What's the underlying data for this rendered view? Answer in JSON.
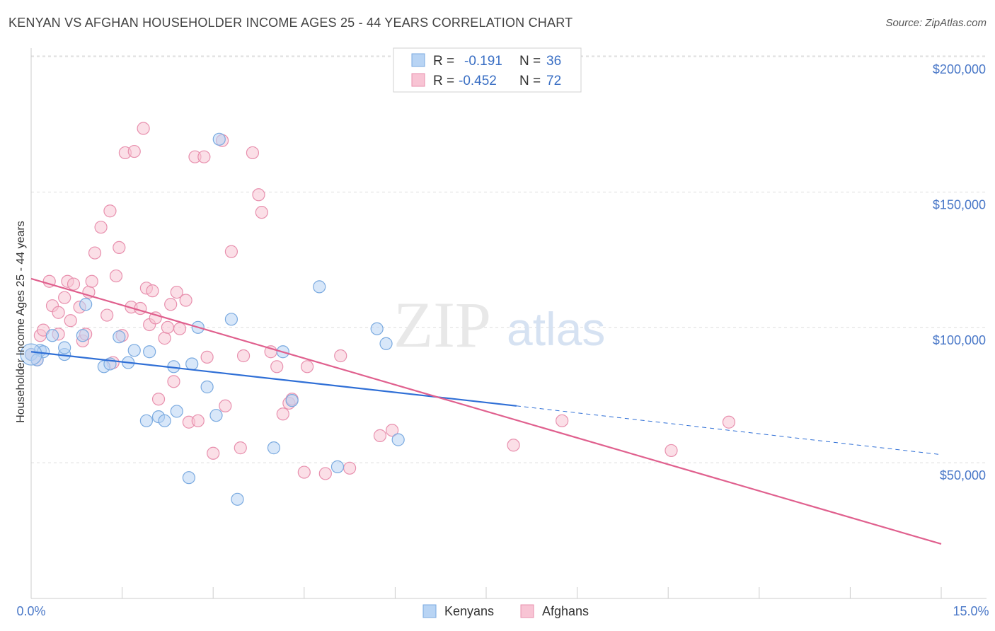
{
  "title": "KENYAN VS AFGHAN HOUSEHOLDER INCOME AGES 25 - 44 YEARS CORRELATION CHART",
  "source": "Source: ZipAtlas.com",
  "watermark": {
    "zip": "ZIP",
    "atlas": "atlas"
  },
  "colors": {
    "kenyan_fill": "#b8d4f4",
    "kenyan_stroke": "#7aaae0",
    "kenyan_line": "#2f6fd6",
    "afghan_fill": "#f8c4d4",
    "afghan_stroke": "#e890ae",
    "afghan_line": "#e0608e",
    "tick_text": "#4a78c8"
  },
  "legend": {
    "row1": {
      "r_label": "R =",
      "r_value": "-0.191",
      "n_label": "N =",
      "n_value": "36"
    },
    "row2": {
      "r_label": "R =",
      "r_value": "-0.452",
      "n_label": "N =",
      "n_value": "72"
    }
  },
  "chart_data": {
    "type": "scatter",
    "title": "KENYAN VS AFGHAN HOUSEHOLDER INCOME AGES 25 - 44 YEARS CORRELATION CHART",
    "xlabel": "",
    "ylabel": "Householder Income Ages 25 - 44 years",
    "xlim": [
      0,
      15
    ],
    "ylim": [
      0,
      205000
    ],
    "x_tick_labels": [
      "0.0%",
      "15.0%"
    ],
    "y_ticks": [
      50000,
      100000,
      150000,
      200000
    ],
    "y_tick_labels": [
      "$50,000",
      "$100,000",
      "$150,000",
      "$200,000"
    ],
    "grid": true,
    "legend_position": "top-center",
    "series": [
      {
        "name": "Kenyans",
        "color": "#b8d4f4",
        "trend": {
          "x": [
            0,
            8.0
          ],
          "y": [
            91000,
            71000
          ],
          "dashed_to": [
            15,
            53000
          ]
        },
        "points": [
          [
            0.0,
            90000
          ],
          [
            0.15,
            91500
          ],
          [
            0.2,
            91000
          ],
          [
            0.35,
            97000
          ],
          [
            0.55,
            90000
          ],
          [
            0.55,
            92500
          ],
          [
            0.85,
            97000
          ],
          [
            0.9,
            108500
          ],
          [
            1.2,
            85500
          ],
          [
            1.3,
            86500
          ],
          [
            1.45,
            96500
          ],
          [
            1.6,
            87000
          ],
          [
            1.7,
            91500
          ],
          [
            1.9,
            65500
          ],
          [
            1.95,
            91000
          ],
          [
            2.1,
            67000
          ],
          [
            2.2,
            65500
          ],
          [
            2.35,
            85500
          ],
          [
            2.4,
            69000
          ],
          [
            2.6,
            44500
          ],
          [
            2.65,
            86500
          ],
          [
            2.75,
            100000
          ],
          [
            2.9,
            78000
          ],
          [
            3.05,
            67500
          ],
          [
            3.1,
            169500
          ],
          [
            3.3,
            103000
          ],
          [
            3.4,
            36500
          ],
          [
            4.0,
            55500
          ],
          [
            4.15,
            91000
          ],
          [
            4.3,
            73000
          ],
          [
            4.75,
            115000
          ],
          [
            5.05,
            48500
          ],
          [
            5.7,
            99500
          ],
          [
            5.85,
            94000
          ],
          [
            6.05,
            58500
          ],
          [
            0.1,
            88000
          ]
        ]
      },
      {
        "name": "Afghans",
        "color": "#f8c4d4",
        "trend": {
          "x": [
            0,
            15
          ],
          "y": [
            118000,
            20000
          ]
        },
        "points": [
          [
            0.0,
            90000
          ],
          [
            0.1,
            88000
          ],
          [
            0.15,
            97000
          ],
          [
            0.2,
            99000
          ],
          [
            0.3,
            117000
          ],
          [
            0.35,
            108000
          ],
          [
            0.45,
            97500
          ],
          [
            0.45,
            105500
          ],
          [
            0.55,
            111000
          ],
          [
            0.6,
            117000
          ],
          [
            0.65,
            102500
          ],
          [
            0.7,
            116000
          ],
          [
            0.8,
            107500
          ],
          [
            0.85,
            95000
          ],
          [
            0.9,
            97500
          ],
          [
            0.95,
            113000
          ],
          [
            1.0,
            117000
          ],
          [
            1.05,
            127500
          ],
          [
            1.15,
            137000
          ],
          [
            1.25,
            104500
          ],
          [
            1.3,
            143000
          ],
          [
            1.35,
            87000
          ],
          [
            1.4,
            119000
          ],
          [
            1.45,
            129500
          ],
          [
            1.5,
            97000
          ],
          [
            1.55,
            164500
          ],
          [
            1.65,
            107500
          ],
          [
            1.7,
            165000
          ],
          [
            1.8,
            107000
          ],
          [
            1.85,
            173500
          ],
          [
            1.9,
            114500
          ],
          [
            1.95,
            101000
          ],
          [
            2.0,
            113500
          ],
          [
            2.05,
            103500
          ],
          [
            2.1,
            73500
          ],
          [
            2.2,
            96000
          ],
          [
            2.25,
            100000
          ],
          [
            2.3,
            108500
          ],
          [
            2.35,
            80000
          ],
          [
            2.4,
            113000
          ],
          [
            2.45,
            99500
          ],
          [
            2.55,
            110000
          ],
          [
            2.6,
            65000
          ],
          [
            2.7,
            163000
          ],
          [
            2.75,
            65500
          ],
          [
            2.85,
            163000
          ],
          [
            2.9,
            89000
          ],
          [
            3.0,
            53500
          ],
          [
            3.15,
            169000
          ],
          [
            3.2,
            71000
          ],
          [
            3.3,
            128000
          ],
          [
            3.45,
            55500
          ],
          [
            3.5,
            89500
          ],
          [
            3.65,
            164500
          ],
          [
            3.75,
            149000
          ],
          [
            3.8,
            142500
          ],
          [
            3.95,
            91000
          ],
          [
            4.05,
            85500
          ],
          [
            4.15,
            68000
          ],
          [
            4.25,
            72000
          ],
          [
            4.3,
            73500
          ],
          [
            4.5,
            46500
          ],
          [
            4.55,
            85500
          ],
          [
            4.85,
            46000
          ],
          [
            5.1,
            89500
          ],
          [
            5.25,
            48000
          ],
          [
            5.75,
            60000
          ],
          [
            5.95,
            62000
          ],
          [
            7.95,
            56500
          ],
          [
            8.75,
            65500
          ],
          [
            10.55,
            54500
          ],
          [
            11.5,
            65000
          ]
        ]
      }
    ]
  }
}
